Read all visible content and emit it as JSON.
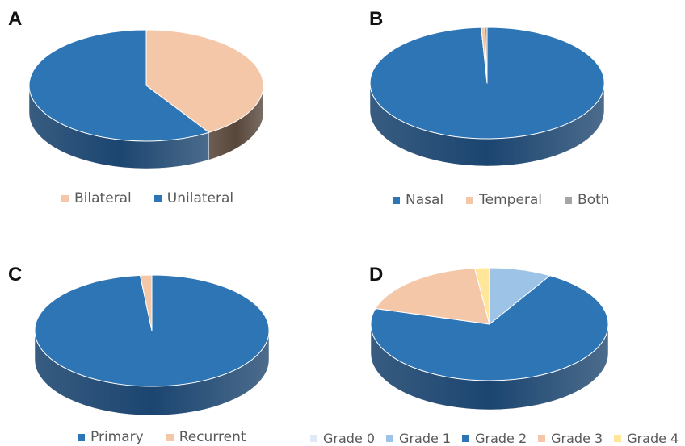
{
  "chart_data": [
    {
      "panel": "A",
      "type": "pie",
      "categories": [
        "Bilateral",
        "Unilateral"
      ],
      "values": [
        41,
        59
      ],
      "colors": [
        "#F4C7A9",
        "#2E75B6"
      ],
      "side_colors": [
        "#655143",
        "#1F4F80"
      ],
      "legend_position": "bottom"
    },
    {
      "panel": "B",
      "type": "pie",
      "categories": [
        "Nasal",
        "Temperal",
        "Both"
      ],
      "values": [
        99.2,
        0.5,
        0.3
      ],
      "colors": [
        "#2E75B6",
        "#F4C7A9",
        "#A5A5A5"
      ],
      "side_colors": [
        "#1F4F80",
        "#655143",
        "#5F5F5F"
      ],
      "legend_position": "bottom"
    },
    {
      "panel": "C",
      "type": "pie",
      "categories": [
        "Primary",
        "Recurrent"
      ],
      "values": [
        98.4,
        1.6
      ],
      "colors": [
        "#2E75B6",
        "#F4C7A9"
      ],
      "side_colors": [
        "#1F4F80",
        "#655143"
      ],
      "legend_position": "bottom"
    },
    {
      "panel": "D",
      "type": "pie",
      "categories": [
        "Grade 0",
        "Grade 1",
        "Grade 2",
        "Grade 3",
        "Grade 4"
      ],
      "values": [
        0,
        8.5,
        71,
        18.5,
        2
      ],
      "colors": [
        "#DEEBF7",
        "#9DC3E6",
        "#2E75B6",
        "#F4C7A9",
        "#FFE699"
      ],
      "side_colors": [
        "#8A96A3",
        "#5D7F9E",
        "#1F4F80",
        "#655143",
        "#8A7A40"
      ],
      "legend_position": "bottom"
    }
  ]
}
